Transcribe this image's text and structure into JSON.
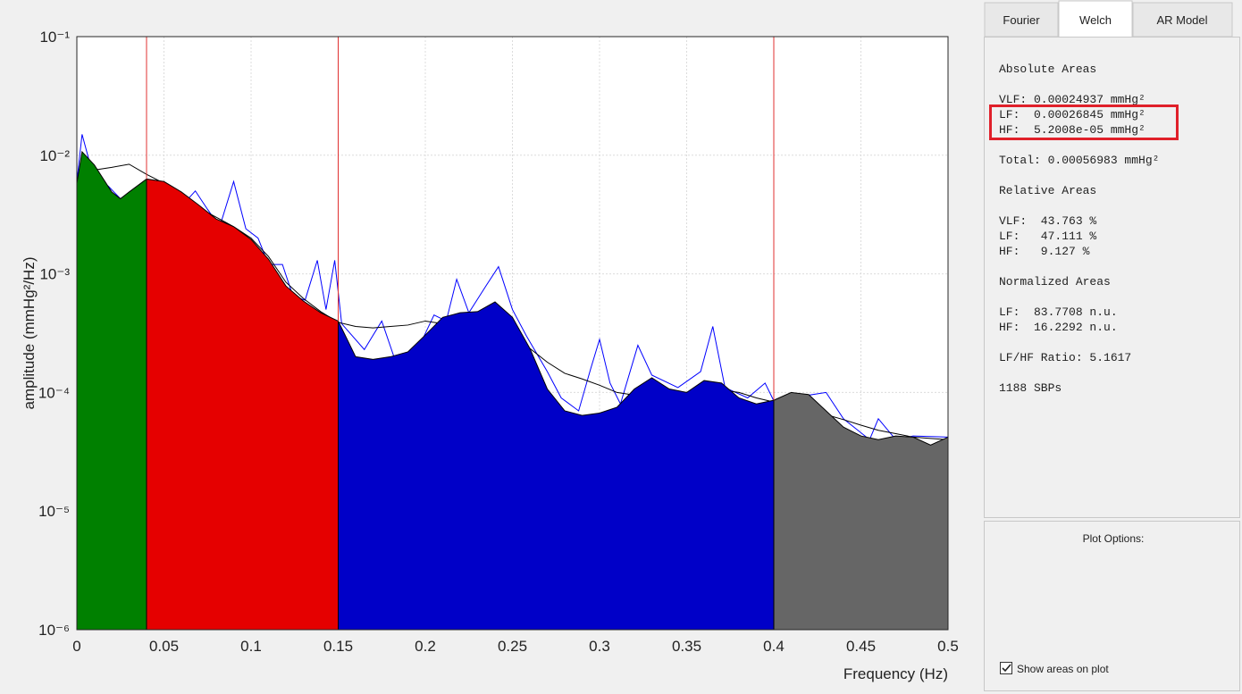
{
  "chart_data": {
    "type": "area",
    "x_label": "Frequency (Hz)",
    "y_label": "amplitude (mmHg²/Hz)",
    "xlim": [
      0,
      0.5
    ],
    "xticks": [
      0,
      0.05,
      0.1,
      0.15,
      0.2,
      0.25,
      0.3,
      0.35,
      0.4,
      0.45,
      0.5
    ],
    "ylim": [
      1e-06,
      0.1
    ],
    "y_scale": "log",
    "yticks": [
      {
        "value": 1e-06,
        "label": "10⁻⁶"
      },
      {
        "value": 1e-05,
        "label": "10⁻⁵"
      },
      {
        "value": 0.0001,
        "label": "10⁻⁴"
      },
      {
        "value": 0.001,
        "label": "10⁻³"
      },
      {
        "value": 0.01,
        "label": "10⁻²"
      },
      {
        "value": 0.1,
        "label": "10⁻¹"
      }
    ],
    "grid": true,
    "band_edges": [
      0.04,
      0.15,
      0.4
    ],
    "band_edge_color": "#e03030",
    "band_colors": [
      "#008000",
      "#e50000",
      "#0000c8",
      "#666666"
    ],
    "series": [
      {
        "color": "#0000ff",
        "x": [
          0,
          0.003,
          0.008,
          0.013,
          0.018,
          0.025,
          0.035,
          0.045,
          0.055,
          0.062,
          0.068,
          0.075,
          0.082,
          0.09,
          0.097,
          0.104,
          0.11,
          0.118,
          0.124,
          0.131,
          0.138,
          0.143,
          0.148,
          0.152,
          0.165,
          0.175,
          0.182,
          0.195,
          0.205,
          0.212,
          0.218,
          0.225,
          0.235,
          0.242,
          0.25,
          0.258,
          0.27,
          0.278,
          0.288,
          0.295,
          0.3,
          0.306,
          0.312,
          0.322,
          0.33,
          0.345,
          0.358,
          0.365,
          0.372,
          0.385,
          0.395,
          0.4,
          0.41,
          0.43,
          0.44,
          0.455,
          0.46,
          0.47,
          0.48,
          0.5
        ],
        "values": [
          0.006,
          0.015,
          0.008,
          0.006,
          0.0055,
          0.0043,
          0.0055,
          0.0055,
          0.0045,
          0.004,
          0.005,
          0.0035,
          0.0025,
          0.006,
          0.0024,
          0.002,
          0.0012,
          0.0012,
          0.00065,
          0.0006,
          0.0013,
          0.0005,
          0.0013,
          0.00038,
          0.00023,
          0.0004,
          0.0002,
          0.00022,
          0.00045,
          0.0004,
          0.0009,
          0.00047,
          0.0008,
          0.00115,
          0.0005,
          0.0003,
          0.00015,
          9e-05,
          7e-05,
          0.00016,
          0.00028,
          0.00012,
          8e-05,
          0.00025,
          0.00014,
          0.00011,
          0.00015,
          0.00036,
          0.00011,
          9e-05,
          0.00012,
          8.5e-05,
          9e-05,
          0.0001,
          6e-05,
          4e-05,
          6e-05,
          4e-05,
          4.3e-05,
          4.2e-05
        ]
      },
      {
        "color": "#000000",
        "x": [
          0,
          0.01,
          0.02,
          0.03,
          0.04,
          0.05,
          0.06,
          0.07,
          0.08,
          0.09,
          0.1,
          0.11,
          0.12,
          0.13,
          0.14,
          0.15,
          0.16,
          0.17,
          0.18,
          0.19,
          0.2,
          0.21,
          0.22,
          0.23,
          0.24,
          0.25,
          0.26,
          0.27,
          0.28,
          0.29,
          0.3,
          0.31,
          0.32,
          0.33,
          0.34,
          0.35,
          0.36,
          0.37,
          0.38,
          0.39,
          0.4,
          0.41,
          0.42,
          0.43,
          0.44,
          0.45,
          0.46,
          0.47,
          0.48,
          0.49,
          0.5
        ],
        "values": [
          0.0063,
          0.0075,
          0.0079,
          0.0084,
          0.0069,
          0.0058,
          0.0046,
          0.0036,
          0.003,
          0.0025,
          0.002,
          0.0014,
          0.00085,
          0.00062,
          0.00048,
          0.00039,
          0.00036,
          0.00035,
          0.00036,
          0.00037,
          0.0004,
          0.00038,
          0.00036,
          0.00033,
          0.0003,
          0.00026,
          0.000235,
          0.00018,
          0.000145,
          0.00013,
          0.000115,
          0.0001,
          9.5e-05,
          0.0001,
          0.0001,
          9.5e-05,
          0.000105,
          0.000105,
          0.0001,
          9e-05,
          8.3e-05,
          7.8e-05,
          7.2e-05,
          6.5e-05,
          5.9e-05,
          5.3e-05,
          4.8e-05,
          4.5e-05,
          4.2e-05,
          4.1e-05,
          4e-05
        ]
      },
      {
        "color": "#000000",
        "filled": true,
        "x": [
          0,
          0.003,
          0.01,
          0.02,
          0.025,
          0.03,
          0.04,
          0.05,
          0.06,
          0.07,
          0.08,
          0.09,
          0.1,
          0.11,
          0.12,
          0.13,
          0.14,
          0.15,
          0.16,
          0.17,
          0.18,
          0.19,
          0.2,
          0.21,
          0.22,
          0.23,
          0.24,
          0.25,
          0.26,
          0.27,
          0.28,
          0.29,
          0.3,
          0.31,
          0.32,
          0.33,
          0.34,
          0.35,
          0.36,
          0.37,
          0.38,
          0.39,
          0.4,
          0.41,
          0.42,
          0.43,
          0.44,
          0.45,
          0.46,
          0.47,
          0.48,
          0.49,
          0.5
        ],
        "values": [
          0.0058,
          0.0107,
          0.0083,
          0.0049,
          0.0043,
          0.0049,
          0.0063,
          0.006,
          0.0049,
          0.0038,
          0.0029,
          0.0025,
          0.00195,
          0.00133,
          0.00079,
          0.00059,
          0.00047,
          0.0004,
          0.0002,
          0.00019,
          0.0002,
          0.00022,
          0.000305,
          0.00043,
          0.00047,
          0.00048,
          0.00058,
          0.00043,
          0.000235,
          0.000107,
          7e-05,
          6.4e-05,
          6.7e-05,
          7.5e-05,
          0.000107,
          0.000133,
          0.000107,
          0.0001,
          0.000126,
          0.00012,
          9e-05,
          8e-05,
          8.6e-05,
          0.0001,
          9.6e-05,
          7e-05,
          5.1e-05,
          4.3e-05,
          4e-05,
          4.3e-05,
          4.2e-05,
          3.6e-05,
          4.2e-05
        ]
      }
    ]
  },
  "panel": {
    "tabs": [
      "Fourier",
      "Welch",
      "AR Model"
    ],
    "absolute_heading": "Absolute Areas",
    "absolute": [
      "VLF: 0.00024937 mmHg²",
      "LF:  0.00026845 mmHg²",
      "HF:  5.2008e-05 mmHg²"
    ],
    "total": "Total: 0.00056983 mmHg²",
    "relative_heading": "Relative Areas",
    "relative": [
      "VLF:  43.763 %",
      "LF:   47.111 %",
      "HF:   9.127 %"
    ],
    "normalized_heading": "Normalized Areas",
    "normalized": [
      "LF:  83.7708 n.u.",
      "HF:  16.2292 n.u."
    ],
    "ratio": "LF/HF Ratio: 5.1617",
    "count": "1188 SBPs",
    "plot_options_title": "Plot Options:",
    "show_areas_label": "Show areas on plot"
  }
}
